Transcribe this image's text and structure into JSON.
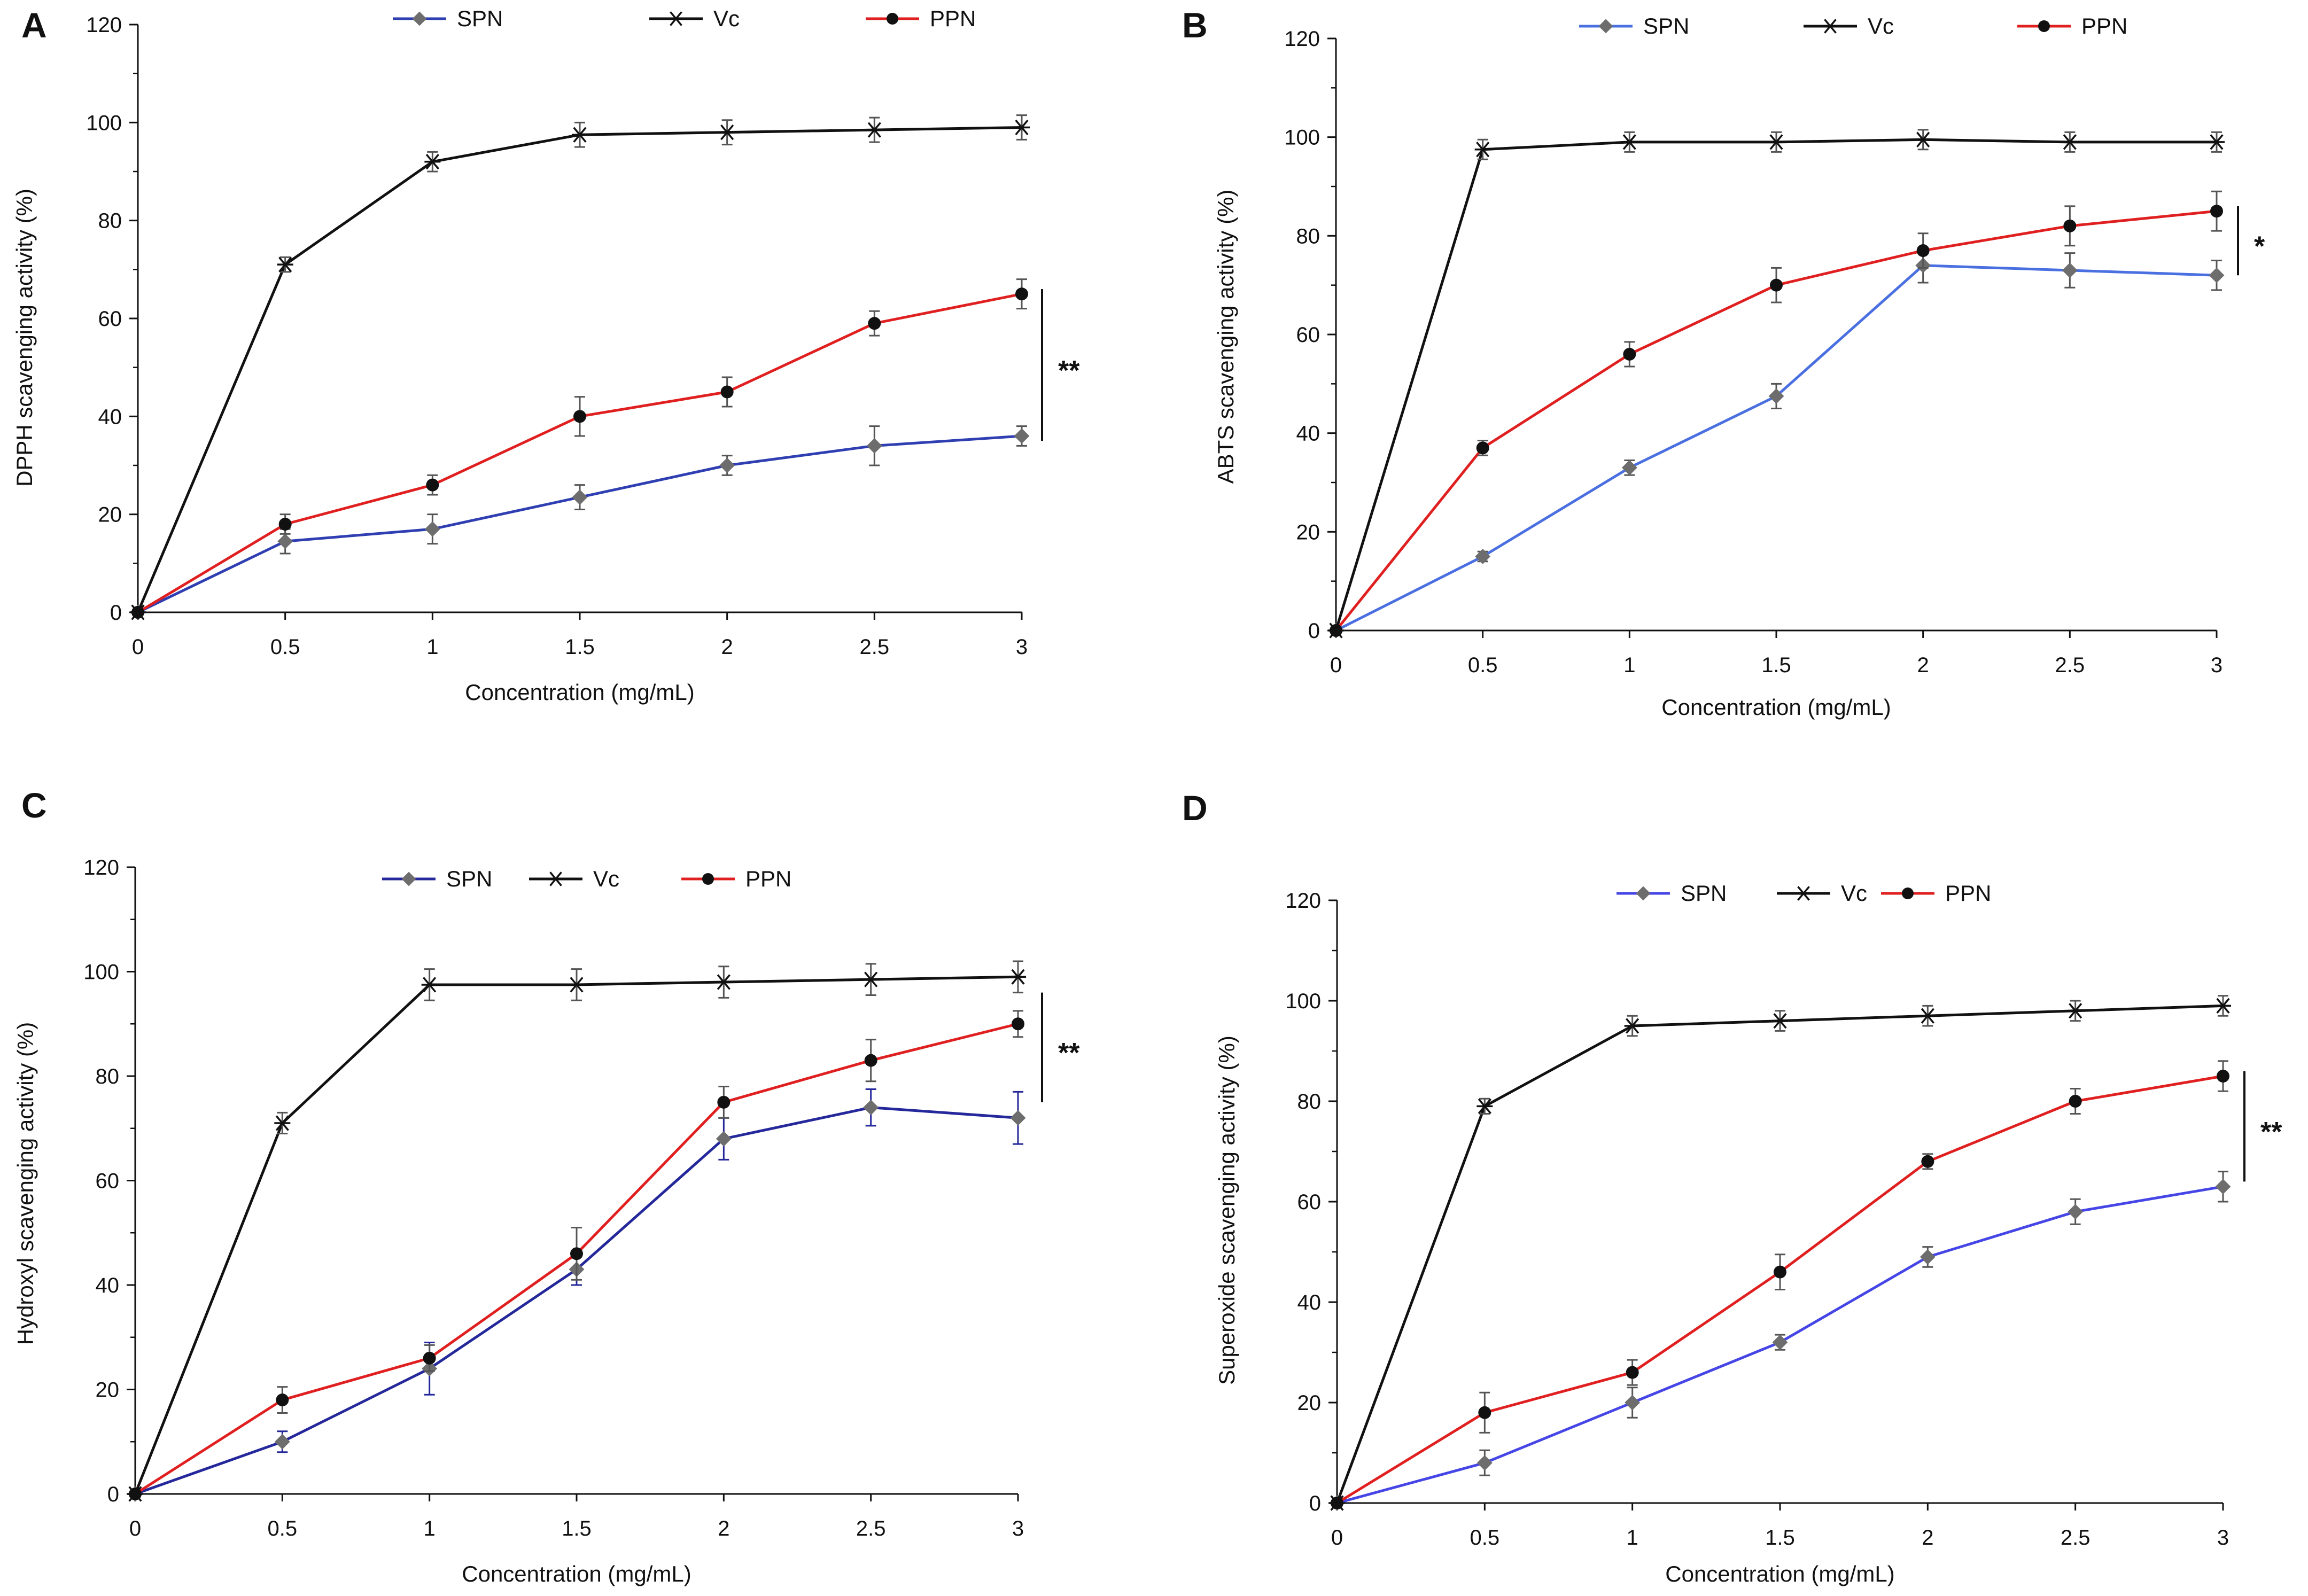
{
  "figure": {
    "panels": [
      "A",
      "B",
      "C",
      "D"
    ]
  },
  "colors": {
    "SPN_A": "#2f3fb2",
    "SPN_B": "#4a6fe0",
    "SPN_C": "#25289a",
    "SPN_D": "#4646e6",
    "SPN_marker": "#6d6d6d",
    "Vc": "#111111",
    "PPN": "#e02020",
    "axis": "#111111",
    "error_gray": "#555555",
    "error_blue": "#25289a"
  },
  "chart_data": [
    {
      "panel": "A",
      "type": "line",
      "xlabel": "Concentration (mg/mL)",
      "ylabel": "DPPH scavenging activity (%)",
      "x": [
        0,
        0.5,
        1,
        1.5,
        2,
        2.5,
        3
      ],
      "x_tick_labels": [
        "0",
        "0.5",
        "1",
        "1.5",
        "2",
        "2.5",
        "3"
      ],
      "ylim": [
        0,
        120
      ],
      "y_ticks": [
        0,
        20,
        40,
        60,
        80,
        100,
        120
      ],
      "y_tick_labels": [
        "0",
        "20",
        "40",
        "60",
        "80",
        "100",
        "120"
      ],
      "legend": [
        "SPN",
        "Vc",
        "PPN"
      ],
      "series": [
        {
          "name": "SPN",
          "values": [
            0,
            14.5,
            17,
            23.5,
            30,
            34,
            36
          ],
          "errors": [
            0,
            2.5,
            3,
            2.5,
            2,
            4,
            2
          ]
        },
        {
          "name": "Vc",
          "values": [
            0,
            71,
            92,
            97.5,
            98,
            98.5,
            99
          ],
          "errors": [
            0,
            1.5,
            2,
            2.5,
            2.5,
            2.5,
            2.5
          ]
        },
        {
          "name": "PPN",
          "values": [
            0,
            18,
            26,
            40,
            45,
            59,
            65
          ],
          "errors": [
            0,
            2,
            2,
            4,
            3,
            2.5,
            3
          ]
        }
      ],
      "significance": "**",
      "significance_range": [
        35,
        66
      ]
    },
    {
      "panel": "B",
      "type": "line",
      "xlabel": "Concentration (mg/mL)",
      "ylabel": "ABTS  scavenging activity (%)",
      "x": [
        0,
        0.5,
        1,
        1.5,
        2,
        2.5,
        3
      ],
      "x_tick_labels": [
        "0",
        "0.5",
        "1",
        "1.5",
        "2",
        "2.5",
        "3"
      ],
      "ylim": [
        0,
        120
      ],
      "y_ticks": [
        0,
        20,
        40,
        60,
        80,
        100,
        120
      ],
      "y_tick_labels": [
        "0",
        "20",
        "40",
        "60",
        "80",
        "100",
        "120"
      ],
      "legend": [
        "SPN",
        "Vc",
        "PPN"
      ],
      "series": [
        {
          "name": "SPN",
          "values": [
            0,
            15,
            33,
            47.5,
            74,
            73,
            72
          ],
          "errors": [
            0,
            1,
            1.5,
            2.5,
            3.5,
            3.5,
            3
          ]
        },
        {
          "name": "Vc",
          "values": [
            0,
            97.5,
            99,
            99,
            99.5,
            99,
            99
          ],
          "errors": [
            0,
            2,
            2,
            2,
            2,
            2,
            2
          ]
        },
        {
          "name": "PPN",
          "values": [
            0,
            37,
            56,
            70,
            77,
            82,
            85
          ],
          "errors": [
            0,
            1.5,
            2.5,
            3.5,
            3.5,
            4,
            4
          ]
        }
      ],
      "significance": "*",
      "significance_range": [
        72,
        86
      ]
    },
    {
      "panel": "C",
      "type": "line",
      "xlabel": "Concentration (mg/mL)",
      "ylabel": "Hydroxyl scavenging activity (%)",
      "x": [
        0,
        0.5,
        1,
        1.5,
        2,
        2.5,
        3
      ],
      "x_tick_labels": [
        "0",
        "0.5",
        "1",
        "1.5",
        "2",
        "2.5",
        "3"
      ],
      "ylim": [
        0,
        120
      ],
      "y_ticks": [
        0,
        20,
        40,
        60,
        80,
        100,
        120
      ],
      "y_tick_labels": [
        "0",
        "20",
        "40",
        "60",
        "80",
        "100",
        "120"
      ],
      "legend": [
        "SPN",
        "Vc",
        "PPN"
      ],
      "series": [
        {
          "name": "SPN",
          "values": [
            0,
            10,
            24,
            43,
            68,
            74,
            72
          ],
          "errors": [
            0,
            2,
            5,
            3,
            4,
            3.5,
            5
          ]
        },
        {
          "name": "Vc",
          "values": [
            0,
            71,
            97.5,
            97.5,
            98,
            98.5,
            99
          ],
          "errors": [
            0,
            2,
            3,
            3,
            3,
            3,
            3
          ]
        },
        {
          "name": "PPN",
          "values": [
            0,
            18,
            26,
            46,
            75,
            83,
            90
          ],
          "errors": [
            0,
            2.5,
            2.5,
            5,
            3,
            4,
            2.5
          ]
        }
      ],
      "significance": "**",
      "significance_range": [
        75,
        96
      ]
    },
    {
      "panel": "D",
      "type": "line",
      "xlabel": "Concentration (mg/mL)",
      "ylabel": "Superoxide scavenging activity (%)",
      "x": [
        0,
        0.5,
        1,
        1.5,
        2,
        2.5,
        3
      ],
      "x_tick_labels": [
        "0",
        "0.5",
        "1",
        "1.5",
        "2",
        "2.5",
        "3"
      ],
      "ylim": [
        0,
        120
      ],
      "y_ticks": [
        0,
        20,
        40,
        60,
        80,
        100,
        120
      ],
      "y_tick_labels": [
        "0",
        "20",
        "40",
        "60",
        "80",
        "100",
        "120"
      ],
      "legend": [
        "SPN",
        "Vc",
        "PPN"
      ],
      "series": [
        {
          "name": "SPN",
          "values": [
            0,
            8,
            20,
            32,
            49,
            58,
            63
          ],
          "errors": [
            0,
            2.5,
            3,
            1.5,
            2,
            2.5,
            3
          ]
        },
        {
          "name": "Vc",
          "values": [
            0,
            79,
            95,
            96,
            97,
            98,
            99
          ],
          "errors": [
            0,
            1.5,
            2,
            2,
            2,
            2,
            2
          ]
        },
        {
          "name": "PPN",
          "values": [
            0,
            18,
            26,
            46,
            68,
            80,
            85
          ],
          "errors": [
            0,
            4,
            2.5,
            3.5,
            1.5,
            2.5,
            3
          ]
        }
      ],
      "significance": "**",
      "significance_range": [
        64,
        86
      ]
    }
  ]
}
